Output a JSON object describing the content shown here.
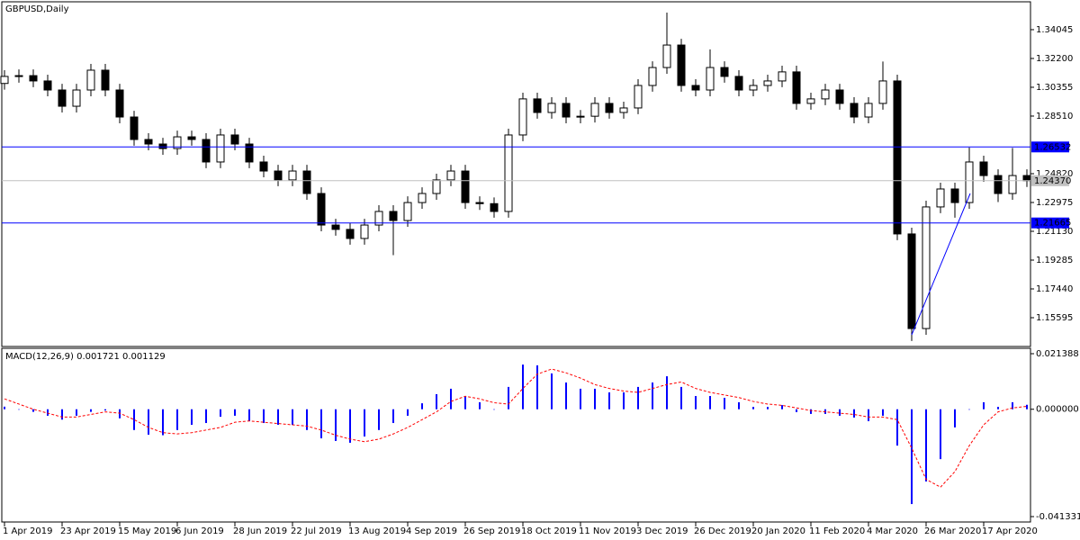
{
  "chart_data": [
    {
      "type": "candlestick",
      "title": "GBPUSD,Daily",
      "categories": [
        "1 Apr 2019",
        null,
        null,
        null,
        "23 Apr 2019",
        null,
        null,
        null,
        "15 May 2019",
        null,
        null,
        null,
        "6 Jun 2019",
        null,
        null,
        null,
        "28 Jun 2019",
        null,
        null,
        null,
        "22 Jul 2019",
        null,
        null,
        null,
        "13 Aug 2019",
        null,
        null,
        null,
        "4 Sep 2019",
        null,
        null,
        null,
        "26 Sep 2019",
        null,
        null,
        null,
        "18 Oct 2019",
        null,
        null,
        null,
        "11 Nov 2019",
        null,
        null,
        null,
        "3 Dec 2019",
        null,
        null,
        null,
        "26 Dec 2019",
        null,
        null,
        null,
        "20 Jan 2020",
        null,
        null,
        null,
        "11 Feb 2020",
        null,
        null,
        null,
        "4 Mar 2020",
        null,
        null,
        null,
        "26 Mar 2020",
        null,
        null,
        null,
        "17 Apr 2020",
        null,
        null,
        null
      ],
      "open": [
        1.306,
        1.3105,
        1.311,
        1.3076,
        1.3018,
        1.2914,
        1.3018,
        1.3145,
        1.3018,
        1.2845,
        1.2701,
        1.2672,
        1.2643,
        1.2718,
        1.2701,
        1.2557,
        1.273,
        1.2672,
        1.2557,
        1.2499,
        1.2442,
        1.2499,
        1.2355,
        1.2153,
        1.2125,
        1.2067,
        1.2153,
        1.224,
        1.2182,
        1.2297,
        1.2355,
        1.2442,
        1.2499,
        1.2297,
        1.229,
        1.224,
        1.273,
        1.2961,
        1.2874,
        1.2932,
        1.2845,
        1.285,
        1.2932,
        1.2874,
        1.2903,
        1.3047,
        1.3162,
        1.3306,
        1.3047,
        1.3018,
        1.3162,
        1.3105,
        1.3018,
        1.3047,
        1.3076,
        1.3134,
        1.2932,
        1.2961,
        1.3018,
        1.2932,
        1.2845,
        1.2932,
        1.3076,
        1.2096,
        1.149,
        1.2269,
        1.2384,
        1.2297,
        1.2557,
        1.247,
        1.2355,
        1.247
      ],
      "high": [
        1.3145,
        1.315,
        1.315,
        1.3116,
        1.3058,
        1.3058,
        1.3185,
        1.3185,
        1.3058,
        1.2885,
        1.2741,
        1.2712,
        1.2758,
        1.2758,
        1.2741,
        1.277,
        1.277,
        1.2712,
        1.2597,
        1.2539,
        1.2539,
        1.2539,
        1.2395,
        1.2193,
        1.2165,
        1.2193,
        1.228,
        1.228,
        1.2337,
        1.2395,
        1.2482,
        1.2539,
        1.2539,
        1.2337,
        1.233,
        1.277,
        1.3001,
        1.3001,
        1.2972,
        1.2972,
        1.289,
        1.2972,
        1.2972,
        1.2943,
        1.3087,
        1.3202,
        1.3514,
        1.3346,
        1.3087,
        1.3278,
        1.3202,
        1.3145,
        1.3087,
        1.3116,
        1.3174,
        1.3174,
        1.3001,
        1.3058,
        1.3058,
        1.2972,
        1.2972,
        1.32,
        1.3116,
        1.2136,
        1.2309,
        1.2424,
        1.2424,
        1.265,
        1.2597,
        1.251,
        1.2647,
        1.251
      ],
      "low": [
        1.302,
        1.3065,
        1.3036,
        1.2978,
        1.2874,
        1.2874,
        1.2978,
        1.2978,
        1.2805,
        1.2661,
        1.2632,
        1.2603,
        1.2603,
        1.2661,
        1.2517,
        1.2517,
        1.2632,
        1.2517,
        1.2459,
        1.2402,
        1.2402,
        1.2315,
        1.2113,
        1.2085,
        1.2027,
        1.2027,
        1.2113,
        1.196,
        1.2142,
        1.2257,
        1.2315,
        1.2402,
        1.2257,
        1.225,
        1.22,
        1.22,
        1.269,
        1.2834,
        1.2834,
        1.2805,
        1.2805,
        1.281,
        1.2834,
        1.2834,
        1.2863,
        1.3007,
        1.3122,
        1.3007,
        1.2978,
        1.2978,
        1.3065,
        1.2978,
        1.2978,
        1.3007,
        1.3036,
        1.2892,
        1.2892,
        1.2921,
        1.2892,
        1.2805,
        1.2805,
        1.2892,
        1.2056,
        1.141,
        1.145,
        1.2229,
        1.22,
        1.2257,
        1.243,
        1.23,
        1.2315,
        1.2397
      ],
      "close": [
        1.3105,
        1.311,
        1.3076,
        1.3018,
        1.2914,
        1.3018,
        1.3145,
        1.3018,
        1.2845,
        1.2701,
        1.2672,
        1.2643,
        1.2718,
        1.2701,
        1.2557,
        1.273,
        1.2672,
        1.2557,
        1.2499,
        1.2442,
        1.2499,
        1.2355,
        1.2153,
        1.2125,
        1.2067,
        1.2153,
        1.224,
        1.2182,
        1.2297,
        1.2355,
        1.2442,
        1.2499,
        1.2297,
        1.229,
        1.224,
        1.273,
        1.2961,
        1.2874,
        1.2932,
        1.2845,
        1.285,
        1.2932,
        1.2874,
        1.2903,
        1.3047,
        1.3162,
        1.3306,
        1.3047,
        1.3018,
        1.3162,
        1.3105,
        1.3018,
        1.3047,
        1.3076,
        1.3134,
        1.2932,
        1.2961,
        1.3018,
        1.2932,
        1.2845,
        1.2932,
        1.3076,
        1.2096,
        1.149,
        1.2269,
        1.2384,
        1.2297,
        1.2557,
        1.247,
        1.2355,
        1.247,
        1.2437
      ],
      "up_color": "#ffffff",
      "down_color": "#000000",
      "edge_color": "#000000",
      "ylim": [
        1.1375,
        1.3583
      ],
      "yticks": [
        1.34045,
        {
          "value": 1.322,
          "label": "1.32200"
        },
        1.30355,
        {
          "value": 1.2851,
          "label": "1.28510"
        },
        {
          "value": 1.2482,
          "label": "1.24820"
        },
        1.22975,
        {
          "value": 1.2113,
          "label": "1.21130"
        },
        1.19285,
        {
          "value": 1.1744,
          "label": "1.17440"
        },
        1.15595
      ],
      "hlines": [
        {
          "value": 1.26532,
          "color": "#0000ff"
        },
        {
          "value": 1.21665,
          "color": "#0000ff"
        },
        {
          "value": 1.2437,
          "label": "1.24370",
          "color": "#c0c0c0"
        }
      ]
    },
    {
      "type": "macd",
      "title": "MACD(12,26,9) 0.001721 0.001129",
      "histogram": {
        "color": "#0000ff",
        "values": [
          0.001,
          0,
          -0.001,
          -0.0025,
          -0.004,
          -0.0025,
          -0.001,
          -0.0005,
          -0.0035,
          -0.008,
          -0.0098,
          -0.01,
          -0.008,
          -0.006,
          -0.0053,
          -0.0029,
          -0.0025,
          -0.0046,
          -0.0053,
          -0.006,
          -0.006,
          -0.008,
          -0.0112,
          -0.0122,
          -0.0129,
          -0.0105,
          -0.008,
          -0.0053,
          -0.0025,
          0.0023,
          0.0058,
          0.0079,
          0.0051,
          0.0027,
          -0.0001,
          0.0086,
          0.0172,
          0.0169,
          0.0138,
          0.0103,
          0.0079,
          0.0079,
          0.0065,
          0.0065,
          0.0086,
          0.0103,
          0.0127,
          0.0086,
          0.0051,
          0.0051,
          0.0044,
          0.0027,
          0.0009,
          0.0009,
          0.0016,
          -0.0011,
          -0.0018,
          -0.0018,
          -0.0025,
          -0.0032,
          -0.0046,
          -0.0025,
          -0.014,
          -0.0365,
          -0.0278,
          -0.0192,
          -0.007,
          -0.0001,
          0.0027,
          0.0009,
          0.0027,
          0.001721
        ]
      },
      "signal": {
        "color": "#ff0000",
        "values": [
          0.004,
          0.002,
          0,
          -0.0015,
          -0.003,
          -0.003,
          -0.002,
          -0.001,
          -0.0015,
          -0.004,
          -0.007,
          -0.009,
          -0.0095,
          -0.009,
          -0.008,
          -0.007,
          -0.005,
          -0.0045,
          -0.005,
          -0.0055,
          -0.006,
          -0.0065,
          -0.008,
          -0.01,
          -0.0115,
          -0.0125,
          -0.0115,
          -0.0095,
          -0.007,
          -0.004,
          -0.001,
          0.003,
          0.005,
          0.004,
          0.0025,
          0.002,
          0.008,
          0.0135,
          0.0155,
          0.014,
          0.012,
          0.0095,
          0.008,
          0.007,
          0.0065,
          0.008,
          0.0095,
          0.0105,
          0.008,
          0.0065,
          0.0055,
          0.0045,
          0.003,
          0.002,
          0.0015,
          0.0005,
          -0.0005,
          -0.001,
          -0.0015,
          -0.002,
          -0.003,
          -0.003,
          -0.004,
          -0.015,
          -0.027,
          -0.03,
          -0.024,
          -0.014,
          -0.006,
          -0.001,
          0.0005,
          0.001129
        ]
      },
      "ylim": [
        -0.04341,
        0.02347
      ],
      "yticks": [
        0.021388,
        {
          "value": 0,
          "label": "0.000000"
        },
        -0.041331
      ]
    }
  ]
}
